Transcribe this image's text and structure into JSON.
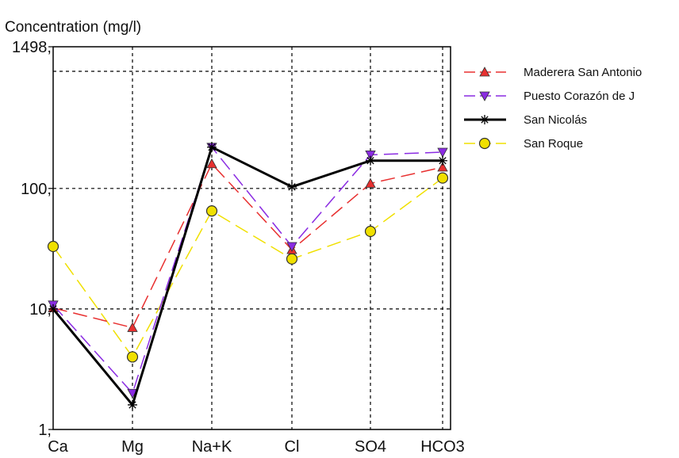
{
  "chart_data": {
    "type": "line",
    "y_axis_title": "Concentration (mg/l)",
    "scale": "log",
    "ylim": [
      1,
      1498
    ],
    "y_ticks": [
      {
        "value": 1,
        "label": "1,"
      },
      {
        "value": 10,
        "label": "10,"
      },
      {
        "value": 100,
        "label": "100,"
      },
      {
        "value": 1498,
        "label": "1498,"
      }
    ],
    "categories": [
      "Ca",
      "Mg",
      "Na+K",
      "Cl",
      "SO4",
      "HCO3"
    ],
    "grid": true,
    "legend_position": "top-right",
    "series": [
      {
        "name": "Maderera San Antonio",
        "color": "#e83030",
        "dash": "18,8",
        "marker": "triangle-up",
        "values": [
          10.2,
          7,
          160,
          31,
          110,
          150
        ]
      },
      {
        "name": "Puesto  Corazón de J",
        "color": "#8a2be2",
        "dash": "18,8",
        "marker": "triangle-down",
        "values": [
          10.8,
          2,
          220,
          33,
          190,
          200
        ]
      },
      {
        "name": "San Nicolás",
        "color": "#000000",
        "dash": "",
        "marker": "star",
        "values": [
          10,
          1.6,
          220,
          103,
          170,
          170
        ]
      },
      {
        "name": "San Roque",
        "color": "#f0e000",
        "dash": "18,8",
        "marker": "circle",
        "values": [
          33,
          4,
          65,
          26,
          44,
          122
        ]
      }
    ]
  }
}
